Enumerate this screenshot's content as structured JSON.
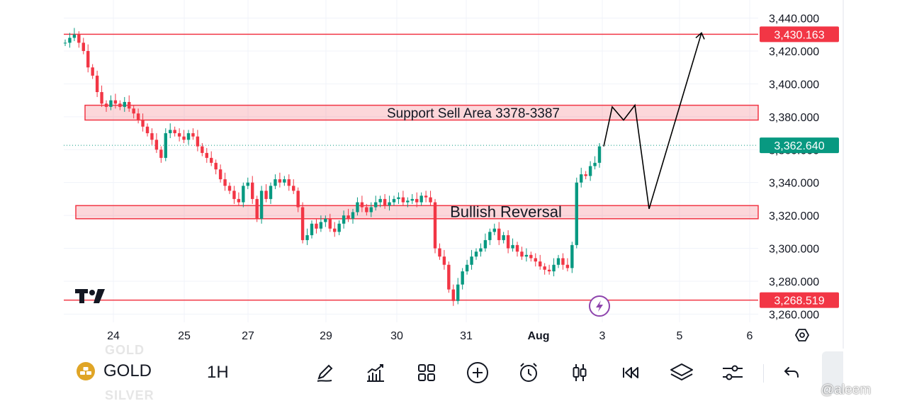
{
  "chart_data": {
    "type": "candlestick",
    "symbol": "GOLD",
    "interval": "1H",
    "y_axis": {
      "ticks": [
        "3,440.000",
        "3,420.000",
        "3,400.000",
        "3,380.000",
        "3,360.000",
        "3,340.000",
        "3,320.000",
        "3,300.000",
        "3,280.000",
        "3,260.000"
      ],
      "tick_values": [
        3440,
        3420,
        3400,
        3380,
        3360,
        3340,
        3320,
        3300,
        3280,
        3260
      ],
      "ylim": [
        3255,
        3451
      ]
    },
    "x_axis": {
      "ticks": [
        "24",
        "25",
        "27",
        "29",
        "30",
        "31",
        "Aug",
        "3",
        "5",
        "6"
      ],
      "bold_tick": "Aug"
    },
    "price_series": [
      [
        3425,
        3428,
        3430,
        3425,
        3420,
        3410,
        3405,
        3395,
        3388,
        3386,
        3390,
        3388,
        3386,
        3389,
        3385,
        3382,
        3378,
        3374,
        3370,
        3366,
        3360,
        3355,
        3370,
        3372,
        3370,
        3368,
        3366,
        3370,
        3368,
        3362,
        3358,
        3355,
        3352,
        3348,
        3342,
        3338,
        3335,
        3330,
        3328,
        3338,
        3340,
        3330,
        3318,
        3335,
        3330,
        3338,
        3342,
        3340,
        3342,
        3338,
        3335,
        3325,
        3305,
        3308,
        3315,
        3312,
        3316,
        3318,
        3312,
        3310,
        3315,
        3320,
        3318,
        3322,
        3328,
        3325,
        3322,
        3325,
        3328,
        3330,
        3326,
        3328,
        3330,
        3331,
        3328,
        3329,
        3330,
        3328,
        3332,
        3331,
        3328,
        3300,
        3295,
        3290,
        3275,
        3268,
        3278,
        3286,
        3290,
        3295,
        3298,
        3300,
        3305,
        3310,
        3312,
        3305,
        3308,
        3300,
        3302,
        3298,
        3295,
        3296,
        3294,
        3292,
        3289,
        3287,
        3286,
        3290,
        3294,
        3290,
        3288,
        3302,
        3340,
        3345,
        3344,
        3350,
        3352,
        3362
      ]
    ],
    "horizontal_levels": [
      {
        "value": 3430.163,
        "label": "3,430.163",
        "color": "#f23645"
      },
      {
        "value": 3268.519,
        "label": "3,268.519",
        "color": "#f23645"
      }
    ],
    "current_price": {
      "value": 3362.64,
      "label": "3,362.640",
      "color": "#089981"
    },
    "zones": [
      {
        "label": "Support Sell Area 3378-3387",
        "low": 3378,
        "high": 3387,
        "color": "#f23645"
      },
      {
        "label": "Bullish Reversal",
        "low": 3318,
        "high": 3326,
        "color": "#f23645"
      }
    ],
    "projection_path": [
      [
        3362,
        3360
      ],
      [
        3386,
        3387
      ],
      [
        3378,
        3385
      ],
      [
        3387,
        3324
      ],
      [
        3324,
        3331
      ],
      [
        3431,
        3431
      ]
    ],
    "candle_colors": {
      "up": "#089981",
      "down": "#f23645"
    }
  },
  "toolbar": {
    "symbol": "GOLD",
    "interval": "1H",
    "ghost_above": "GOLD",
    "ghost_below": "SILVER"
  },
  "icons": {
    "gold": "gold-bars-icon",
    "draw": "pencil-icon",
    "indicators": "indicators-icon",
    "templates": "grid-icon",
    "add": "plus-circle-icon",
    "alert": "alarm-clock-icon",
    "chart_type": "candles-icon",
    "replay": "rewind-icon",
    "layers": "layers-icon",
    "settings": "sliders-icon",
    "undo": "undo-icon",
    "lightning": "lightning-icon",
    "logo": "tradingview-logo",
    "gear": "settings-hexagon-icon"
  },
  "watermark": "@aleem"
}
